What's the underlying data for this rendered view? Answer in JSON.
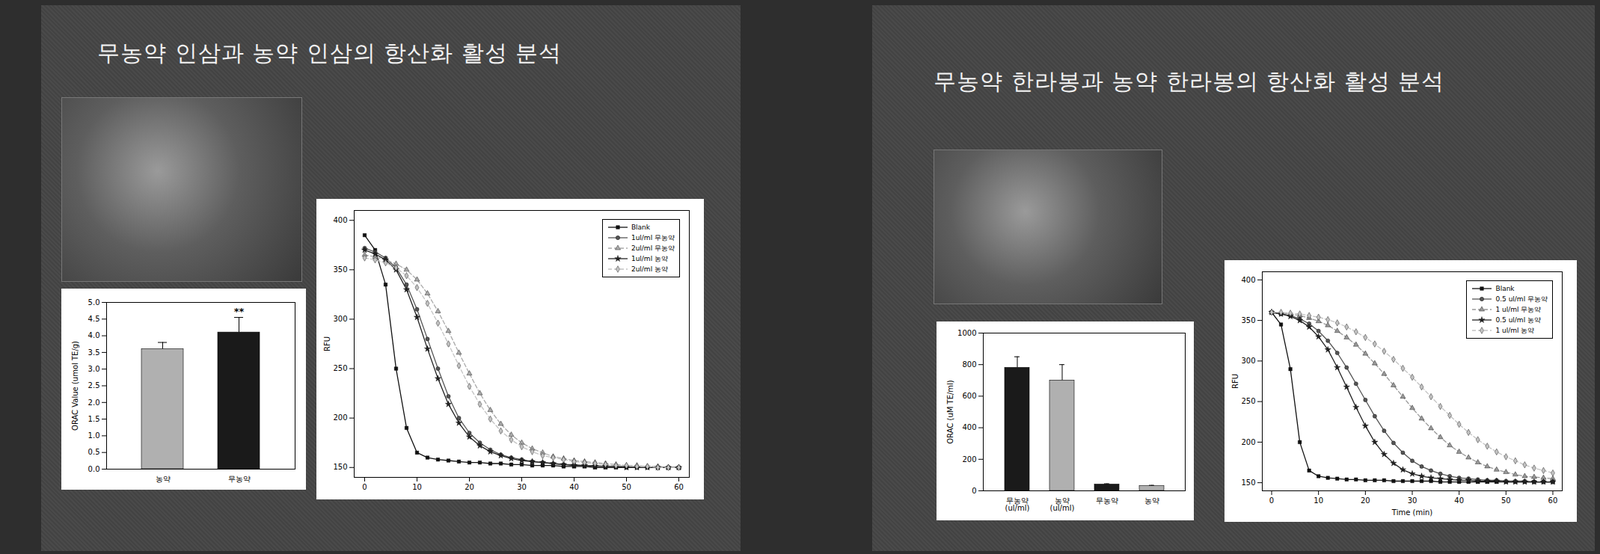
{
  "slide_titles": [
    "무농약 인삼과 농약 인삼의 항산화 활성 분석",
    "무농약 한라봉과 농약 한라봉의 항산화 활성 분석"
  ],
  "chart_data": [
    {
      "type": "bar",
      "ylabel": "ORAC Value (umol TE/g)",
      "categories": [
        "농약",
        "무농약"
      ],
      "values": [
        3.6,
        4.1
      ],
      "errors": [
        0.2,
        0.45
      ],
      "colors": [
        "#b0b0b0",
        "#1a1a1a"
      ],
      "annotations": [
        {
          "category": "무농약",
          "text": "**"
        }
      ],
      "ylim": [
        0,
        5
      ],
      "yticks": [
        {
          "value": 0,
          "label": "0.0"
        },
        0.5,
        {
          "value": 1,
          "label": "1.0"
        },
        1.5,
        {
          "value": 2,
          "label": "2.0"
        },
        2.5,
        {
          "value": 3,
          "label": "3.0"
        },
        3.5,
        {
          "value": 4,
          "label": "4.0"
        },
        4.5,
        {
          "value": 5,
          "label": "5.0"
        }
      ]
    },
    {
      "type": "line",
      "ylabel": "RFU",
      "legend": "top right",
      "x": [
        0,
        2,
        4,
        6,
        8,
        10,
        12,
        14,
        16,
        18,
        20,
        22,
        24,
        26,
        28,
        30,
        32,
        34,
        36,
        38,
        40,
        42,
        44,
        46,
        48,
        50,
        52,
        54,
        56,
        58,
        60
      ],
      "xlim": [
        -2,
        62
      ],
      "xticks": [
        0,
        10,
        20,
        30,
        40,
        50,
        60
      ],
      "ylim": [
        140,
        410
      ],
      "yticks": [
        150,
        200,
        250,
        300,
        350,
        400
      ],
      "series": [
        {
          "name": "Blank",
          "color": "#111111",
          "marker": "square",
          "line_style": "solid",
          "values": [
            385,
            370,
            335,
            250,
            190,
            165,
            160,
            158,
            157,
            156,
            155,
            155,
            154,
            154,
            153,
            153,
            152,
            152,
            152,
            151,
            151,
            151,
            150,
            150,
            150,
            150,
            150,
            150,
            150,
            150,
            150
          ]
        },
        {
          "name": "1ul/ml 무농약",
          "color": "#555555",
          "marker": "circle",
          "line_style": "solid",
          "values": [
            372,
            368,
            362,
            352,
            335,
            310,
            280,
            250,
            222,
            200,
            185,
            175,
            168,
            163,
            160,
            158,
            156,
            155,
            154,
            153,
            153,
            152,
            152,
            151,
            151,
            151,
            150,
            150,
            150,
            150,
            150
          ]
        },
        {
          "name": "2ul/ml 무농약",
          "color": "#aaaaaa",
          "marker": "triangle",
          "line_style": "dashed",
          "values": [
            365,
            363,
            360,
            356,
            350,
            340,
            326,
            308,
            288,
            266,
            245,
            225,
            208,
            194,
            183,
            175,
            169,
            165,
            161,
            159,
            157,
            156,
            155,
            154,
            153,
            152,
            152,
            151,
            151,
            150,
            150
          ]
        },
        {
          "name": "1ul/ml 농약",
          "color": "#222222",
          "marker": "star",
          "line_style": "solid",
          "values": [
            370,
            366,
            360,
            350,
            330,
            302,
            270,
            240,
            214,
            195,
            181,
            172,
            166,
            162,
            159,
            157,
            156,
            155,
            154,
            153,
            152,
            152,
            151,
            151,
            151,
            150,
            150,
            150,
            150,
            150,
            150
          ]
        },
        {
          "name": "2ul/ml 농약",
          "color": "#c4c4c4",
          "marker": "diamond",
          "line_style": "dashed",
          "values": [
            362,
            360,
            357,
            352,
            344,
            332,
            316,
            296,
            275,
            253,
            232,
            214,
            199,
            187,
            178,
            171,
            166,
            162,
            160,
            158,
            156,
            155,
            154,
            153,
            152,
            152,
            151,
            151,
            150,
            150,
            150
          ]
        }
      ]
    },
    {
      "type": "bar",
      "ylabel": "ORAC (uM TE/ml)",
      "categories": [
        "무농약(ul/ml)",
        "농약(ul/ml)",
        "무농약",
        "농약"
      ],
      "values": [
        780,
        700,
        40,
        30
      ],
      "errors": [
        70,
        100,
        5,
        5
      ],
      "colors": [
        "#1a1a1a",
        "#b0b0b0",
        "#1a1a1a",
        "#b0b0b0"
      ],
      "ylim": [
        0,
        1000
      ],
      "yticks": [
        0,
        200,
        400,
        600,
        800,
        1000
      ]
    },
    {
      "type": "line",
      "ylabel": "RFU",
      "xlabel": "Time (min)",
      "legend": "top right",
      "x": [
        0,
        2,
        4,
        6,
        8,
        10,
        12,
        14,
        16,
        18,
        20,
        22,
        24,
        26,
        28,
        30,
        32,
        34,
        36,
        38,
        40,
        42,
        44,
        46,
        48,
        50,
        52,
        54,
        56,
        58,
        60
      ],
      "xlim": [
        -2,
        62
      ],
      "xticks": [
        0,
        10,
        20,
        30,
        40,
        50,
        60
      ],
      "ylim": [
        140,
        410
      ],
      "yticks": [
        150,
        200,
        250,
        300,
        350,
        400
      ],
      "series": [
        {
          "name": "Blank",
          "color": "#111111",
          "marker": "square",
          "line_style": "solid",
          "values": [
            360,
            345,
            290,
            200,
            165,
            158,
            156,
            155,
            154,
            154,
            153,
            153,
            153,
            152,
            152,
            152,
            152,
            152,
            151,
            151,
            151,
            151,
            151,
            151,
            151,
            151,
            151,
            151,
            151,
            151,
            151
          ]
        },
        {
          "name": "0.5 ul/ml 무농약",
          "color": "#555555",
          "marker": "circle",
          "line_style": "solid",
          "values": [
            360,
            358,
            356,
            352,
            346,
            337,
            325,
            310,
            292,
            272,
            252,
            232,
            214,
            199,
            187,
            177,
            170,
            165,
            161,
            158,
            156,
            155,
            154,
            153,
            153,
            152,
            152,
            152,
            151,
            151,
            151
          ]
        },
        {
          "name": "1 ul/ml 무농약",
          "color": "#999999",
          "marker": "triangle",
          "line_style": "dashed",
          "values": [
            360,
            359,
            358,
            356,
            353,
            349,
            344,
            337,
            329,
            320,
            309,
            297,
            284,
            270,
            256,
            242,
            229,
            217,
            206,
            196,
            188,
            181,
            175,
            170,
            166,
            163,
            160,
            158,
            157,
            156,
            155
          ]
        },
        {
          "name": "0.5 ul/ml 농약",
          "color": "#222222",
          "marker": "star",
          "line_style": "solid",
          "values": [
            360,
            358,
            355,
            350,
            342,
            330,
            314,
            292,
            268,
            243,
            220,
            200,
            185,
            174,
            166,
            161,
            158,
            156,
            155,
            154,
            153,
            153,
            152,
            152,
            152,
            151,
            151,
            151,
            151,
            151,
            151
          ]
        },
        {
          "name": "1 ul/ml 농약",
          "color": "#c4c4c4",
          "marker": "diamond",
          "line_style": "dashed",
          "values": [
            360,
            360,
            359,
            358,
            356,
            354,
            351,
            347,
            342,
            336,
            329,
            321,
            312,
            302,
            291,
            280,
            268,
            256,
            244,
            233,
            222,
            212,
            203,
            195,
            188,
            182,
            177,
            172,
            168,
            165,
            162
          ]
        }
      ]
    }
  ]
}
